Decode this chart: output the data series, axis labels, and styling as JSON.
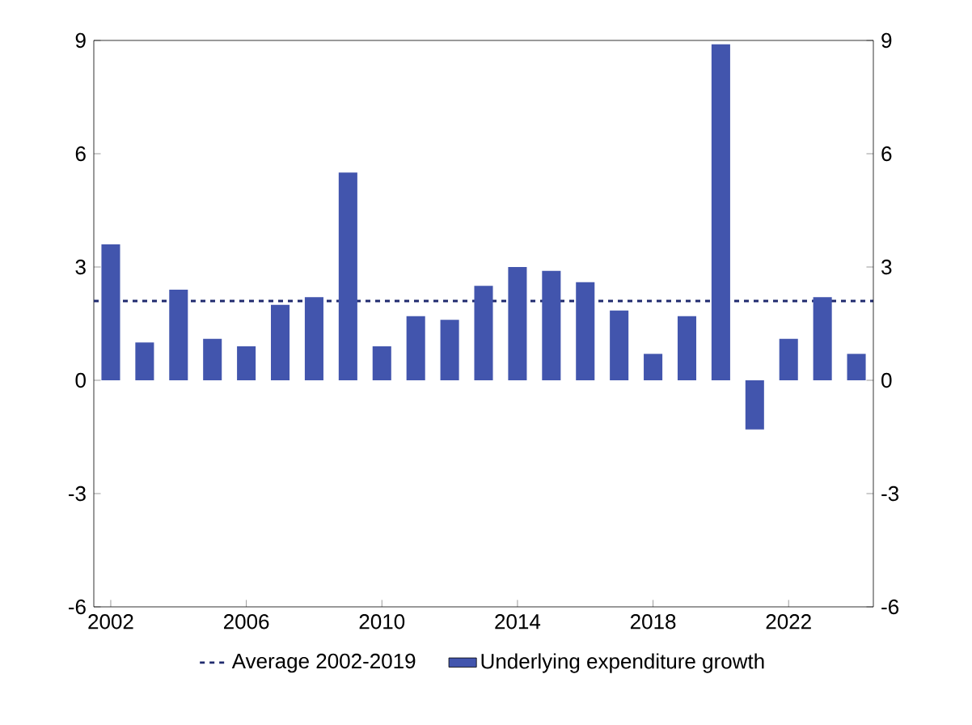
{
  "chart_data": {
    "type": "bar",
    "x": [
      2002,
      2003,
      2004,
      2005,
      2006,
      2007,
      2008,
      2009,
      2010,
      2011,
      2012,
      2013,
      2014,
      2015,
      2016,
      2017,
      2018,
      2019,
      2020,
      2021,
      2022,
      2023,
      2024
    ],
    "series": [
      {
        "name": "Underlying expenditure growth",
        "color": "#4255ad",
        "values": [
          3.6,
          1.0,
          2.4,
          1.1,
          0.9,
          2.0,
          2.2,
          5.5,
          0.9,
          1.7,
          1.6,
          2.5,
          3.0,
          2.9,
          2.6,
          1.85,
          0.7,
          1.7,
          8.9,
          -1.3,
          1.1,
          2.2,
          0.7
        ]
      }
    ],
    "xlim": [
      2001.5,
      2024.5
    ],
    "xticks": [
      2002,
      2006,
      2010,
      2014,
      2018,
      2022
    ],
    "ylim": [
      -6,
      9
    ],
    "yticks": [
      -6,
      -3,
      0,
      3,
      6,
      9
    ],
    "y2lim": [
      -6,
      9
    ],
    "y2ticks": [
      -6,
      -3,
      0,
      3,
      6,
      9
    ],
    "ref_lines": [
      {
        "axis": "y",
        "value": 2.1,
        "label": "Average 2002-2019",
        "color": "#1f2a6e",
        "line_style": "dashed"
      }
    ],
    "legend": "bottom"
  }
}
